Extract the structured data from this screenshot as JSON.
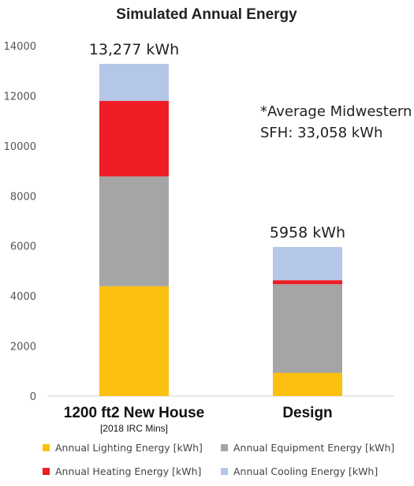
{
  "chart_data": {
    "type": "bar",
    "stacked": true,
    "title": "Simulated Annual Energy",
    "categories": [
      "1200 ft2 New House",
      "Design"
    ],
    "category_sublabels": [
      "[2018 IRC Mins]",
      ""
    ],
    "ylim": [
      0,
      14000
    ],
    "yticks": [
      "0",
      "2000",
      "4000",
      "6000",
      "8000",
      "10000",
      "12000",
      "14000"
    ],
    "series": [
      {
        "name": "Annual Lighting Energy [kWh]",
        "color": "#fcc010",
        "values": [
          4390,
          930
        ]
      },
      {
        "name": "Annual Equipment Energy [kWh]",
        "color": "#a5a5a5",
        "values": [
          4390,
          3540
        ]
      },
      {
        "name": "Annual Heating Energy [kWh]",
        "color": "#ee1c25",
        "values": [
          3020,
          160
        ]
      },
      {
        "name": "Annual Cooling Energy [kWh]",
        "color": "#b4c7e7",
        "values": [
          1477,
          1328
        ]
      }
    ],
    "totals_labels": [
      "13,277 kWh",
      "5958 kWh"
    ],
    "annotation": [
      "*Average Midwestern",
      "SFH: 33,058 kWh"
    ],
    "legend_position": "bottom",
    "grid": false
  }
}
